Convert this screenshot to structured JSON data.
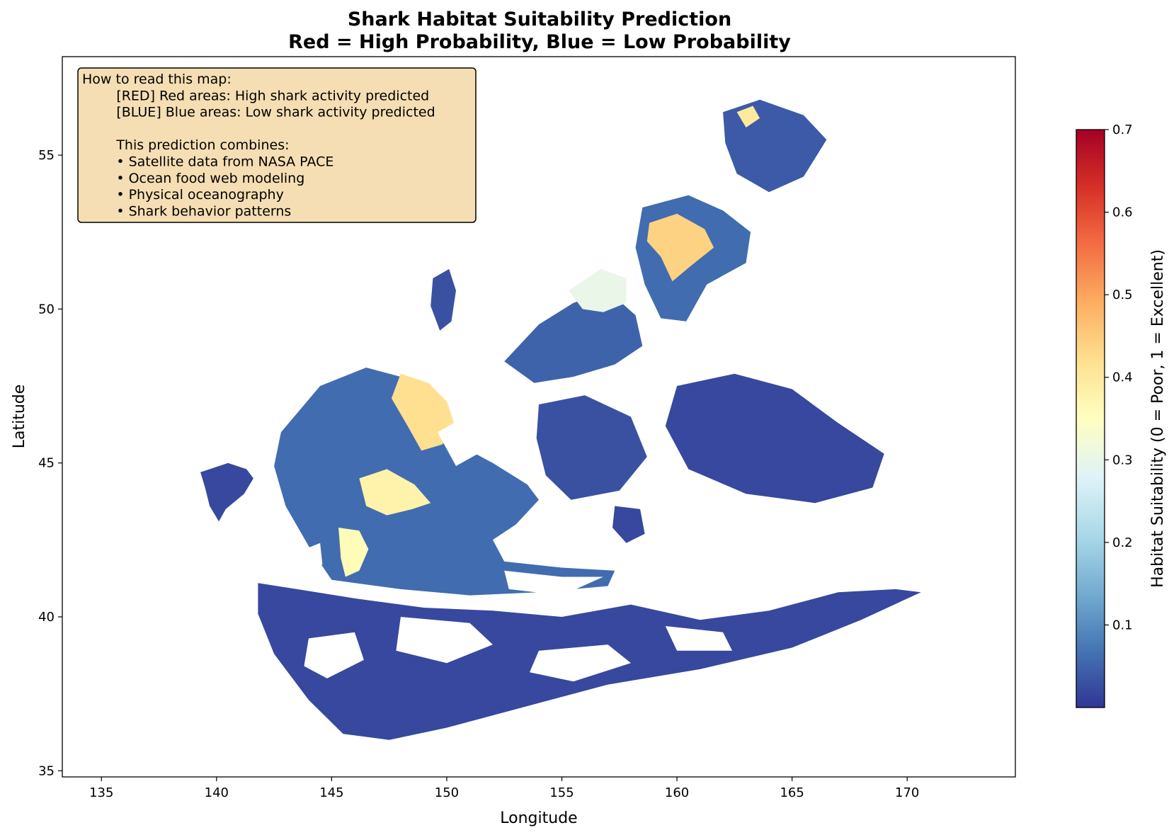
{
  "chart_data": {
    "type": "heatmap",
    "title_line1": "Shark Habitat Suitability Prediction",
    "title_line2": "Red = High Probability, Blue = Low Probability",
    "xlabel": "Longitude",
    "ylabel": "Latitude",
    "xlim": [
      133.3,
      174.7
    ],
    "ylim": [
      34.8,
      58.2
    ],
    "x_ticks": [
      135,
      140,
      145,
      150,
      155,
      160,
      165,
      170
    ],
    "y_ticks": [
      35,
      40,
      45,
      50,
      55
    ],
    "colormap": "RdYlBu_r",
    "colormap_stops": [
      "#313695",
      "#4575b4",
      "#74add1",
      "#abd9e9",
      "#e0f3f8",
      "#ffffbf",
      "#fee090",
      "#fdae61",
      "#f46d43",
      "#d73027",
      "#a50026"
    ],
    "colorbar": {
      "label": "Habitat Suitability (0 = Poor, 1 = Excellent)",
      "vmin": 0.0,
      "vmax": 0.7,
      "ticks": [
        0.1,
        0.2,
        0.3,
        0.4,
        0.5,
        0.6,
        0.7
      ]
    },
    "info_box": {
      "lines": [
        "How to read this map:",
        "        [RED] Red areas: High shark activity predicted",
        "        [BLUE] Blue areas: Low shark activity predicted",
        "",
        "        This prediction combines:",
        "        • Satellite data from NASA PACE",
        "        • Ocean food web modeling",
        "        • Physical oceanography",
        "        • Shark behavior patterns"
      ]
    },
    "regions": [
      {
        "name": "southern-shelf",
        "value": 0.02,
        "points": [
          [
            141.8,
            41.1
          ],
          [
            143.5,
            40.9
          ],
          [
            146.0,
            40.6
          ],
          [
            149.0,
            40.3
          ],
          [
            152.0,
            40.2
          ],
          [
            155.0,
            40.0
          ],
          [
            158.0,
            40.4
          ],
          [
            161.0,
            39.9
          ],
          [
            164.0,
            40.2
          ],
          [
            167.0,
            40.8
          ],
          [
            169.5,
            40.9
          ],
          [
            170.6,
            40.8
          ],
          [
            168.0,
            39.9
          ],
          [
            165.0,
            39.0
          ],
          [
            161.0,
            38.3
          ],
          [
            157.0,
            37.8
          ],
          [
            153.0,
            37.0
          ],
          [
            150.0,
            36.4
          ],
          [
            147.5,
            36.0
          ],
          [
            145.5,
            36.2
          ],
          [
            144.0,
            37.3
          ],
          [
            142.5,
            38.8
          ],
          [
            141.8,
            40.1
          ]
        ]
      },
      {
        "name": "western-block",
        "value": 0.02,
        "points": [
          [
            139.3,
            44.7
          ],
          [
            140.5,
            45.0
          ],
          [
            141.3,
            44.8
          ],
          [
            141.6,
            44.5
          ],
          [
            141.2,
            44.0
          ],
          [
            140.4,
            43.5
          ],
          [
            140.1,
            43.1
          ],
          [
            139.7,
            43.6
          ],
          [
            139.5,
            44.2
          ]
        ]
      },
      {
        "name": "sw-basin",
        "value": 0.06,
        "points": [
          [
            142.8,
            46.0
          ],
          [
            144.5,
            47.5
          ],
          [
            146.5,
            48.1
          ],
          [
            148.0,
            47.8
          ],
          [
            149.5,
            46.6
          ],
          [
            150.5,
            45.6
          ],
          [
            152.0,
            45.0
          ],
          [
            153.5,
            44.3
          ],
          [
            154.0,
            43.8
          ],
          [
            153.0,
            43.0
          ],
          [
            152.0,
            42.5
          ],
          [
            152.5,
            41.8
          ],
          [
            155.0,
            41.6
          ],
          [
            157.3,
            41.5
          ],
          [
            157.0,
            41.0
          ],
          [
            154.0,
            40.8
          ],
          [
            151.0,
            40.7
          ],
          [
            148.0,
            40.9
          ],
          [
            145.0,
            41.2
          ],
          [
            144.0,
            42.3
          ],
          [
            143.0,
            43.6
          ],
          [
            142.5,
            44.9
          ]
        ]
      },
      {
        "name": "sw-warm-front",
        "value": 0.42,
        "points": [
          [
            148.0,
            47.9
          ],
          [
            149.2,
            47.6
          ],
          [
            150.0,
            47.0
          ],
          [
            150.4,
            46.1
          ],
          [
            149.8,
            45.6
          ],
          [
            148.9,
            45.4
          ],
          [
            148.3,
            46.2
          ],
          [
            147.6,
            47.1
          ]
        ]
      },
      {
        "name": "sw-warm-eddy",
        "value": 0.38,
        "points": [
          [
            146.2,
            44.5
          ],
          [
            147.4,
            44.8
          ],
          [
            148.6,
            44.3
          ],
          [
            149.3,
            43.7
          ],
          [
            148.5,
            43.5
          ],
          [
            147.4,
            43.3
          ],
          [
            146.5,
            43.6
          ]
        ]
      },
      {
        "name": "sw-warm-filament",
        "value": 0.36,
        "points": [
          [
            145.3,
            42.9
          ],
          [
            146.2,
            42.8
          ],
          [
            146.6,
            42.2
          ],
          [
            146.2,
            41.5
          ],
          [
            145.6,
            41.3
          ],
          [
            145.4,
            41.9
          ]
        ]
      },
      {
        "name": "central-patch",
        "value": 0.05,
        "points": [
          [
            152.5,
            48.3
          ],
          [
            154.0,
            49.5
          ],
          [
            155.5,
            50.2
          ],
          [
            157.0,
            50.6
          ],
          [
            158.2,
            49.8
          ],
          [
            158.5,
            48.8
          ],
          [
            157.3,
            48.2
          ],
          [
            155.5,
            47.8
          ],
          [
            153.8,
            47.6
          ]
        ]
      },
      {
        "name": "central-warm",
        "value": 0.3,
        "points": [
          [
            155.3,
            50.6
          ],
          [
            156.7,
            51.3
          ],
          [
            157.8,
            51.0
          ],
          [
            157.8,
            50.2
          ],
          [
            156.8,
            49.9
          ],
          [
            155.9,
            50.0
          ]
        ]
      },
      {
        "name": "ne-shelf",
        "value": 0.06,
        "points": [
          [
            158.5,
            53.3
          ],
          [
            160.5,
            53.7
          ],
          [
            162.0,
            53.2
          ],
          [
            163.2,
            52.5
          ],
          [
            163.0,
            51.5
          ],
          [
            161.3,
            50.8
          ],
          [
            160.4,
            49.6
          ],
          [
            159.3,
            49.7
          ],
          [
            158.6,
            50.8
          ],
          [
            158.2,
            52.0
          ]
        ]
      },
      {
        "name": "ne-warm-patch",
        "value": 0.44,
        "points": [
          [
            158.8,
            52.8
          ],
          [
            160.0,
            53.1
          ],
          [
            161.2,
            52.6
          ],
          [
            161.6,
            52.0
          ],
          [
            160.6,
            51.4
          ],
          [
            159.8,
            50.9
          ],
          [
            159.3,
            51.7
          ],
          [
            158.7,
            52.2
          ]
        ]
      },
      {
        "name": "far-ne",
        "value": 0.04,
        "points": [
          [
            162.0,
            56.4
          ],
          [
            163.6,
            56.8
          ],
          [
            165.5,
            56.3
          ],
          [
            166.5,
            55.5
          ],
          [
            165.5,
            54.3
          ],
          [
            164.0,
            53.8
          ],
          [
            162.6,
            54.4
          ],
          [
            162.1,
            55.4
          ]
        ]
      },
      {
        "name": "far-ne-warm",
        "value": 0.4,
        "points": [
          [
            162.6,
            56.4
          ],
          [
            163.3,
            56.6
          ],
          [
            163.6,
            56.2
          ],
          [
            163.0,
            55.9
          ]
        ]
      },
      {
        "name": "north-tongue",
        "value": 0.03,
        "points": [
          [
            149.4,
            51.0
          ],
          [
            150.1,
            51.3
          ],
          [
            150.4,
            50.6
          ],
          [
            150.2,
            49.6
          ],
          [
            149.7,
            49.3
          ],
          [
            149.3,
            50.1
          ]
        ]
      },
      {
        "name": "east-patches",
        "value": 0.02,
        "points": [
          [
            160.0,
            47.5
          ],
          [
            162.5,
            47.9
          ],
          [
            165.0,
            47.4
          ],
          [
            167.0,
            46.3
          ],
          [
            169.0,
            45.3
          ],
          [
            168.5,
            44.2
          ],
          [
            166.0,
            43.7
          ],
          [
            163.0,
            44.0
          ],
          [
            160.5,
            44.8
          ],
          [
            159.5,
            46.2
          ]
        ]
      },
      {
        "name": "mid-scatter",
        "value": 0.03,
        "points": [
          [
            154.0,
            46.9
          ],
          [
            156.0,
            47.2
          ],
          [
            158.0,
            46.5
          ],
          [
            158.7,
            45.2
          ],
          [
            157.5,
            44.1
          ],
          [
            155.4,
            43.8
          ],
          [
            154.3,
            44.6
          ],
          [
            153.9,
            45.8
          ]
        ]
      },
      {
        "name": "south-mid-block",
        "value": 0.02,
        "points": [
          [
            157.3,
            43.6
          ],
          [
            158.4,
            43.5
          ],
          [
            158.6,
            42.7
          ],
          [
            157.8,
            42.4
          ],
          [
            157.2,
            42.9
          ]
        ]
      }
    ],
    "gaps": [
      {
        "name": "gap-1",
        "points": [
          [
            148.0,
            40.0
          ],
          [
            151.0,
            39.8
          ],
          [
            152.0,
            39.1
          ],
          [
            150.0,
            38.5
          ],
          [
            147.8,
            38.9
          ]
        ]
      },
      {
        "name": "gap-2",
        "points": [
          [
            144.0,
            39.3
          ],
          [
            146.0,
            39.5
          ],
          [
            146.4,
            38.6
          ],
          [
            144.8,
            38.0
          ],
          [
            143.8,
            38.4
          ]
        ]
      },
      {
        "name": "gap-3",
        "points": [
          [
            154.0,
            38.9
          ],
          [
            157.0,
            39.1
          ],
          [
            158.0,
            38.5
          ],
          [
            155.5,
            37.9
          ],
          [
            153.6,
            38.2
          ]
        ]
      },
      {
        "name": "gap-4",
        "points": [
          [
            152.5,
            41.5
          ],
          [
            155.0,
            41.3
          ],
          [
            156.8,
            41.3
          ],
          [
            155.0,
            40.7
          ],
          [
            152.7,
            40.9
          ]
        ]
      },
      {
        "name": "gap-5",
        "points": [
          [
            159.5,
            39.7
          ],
          [
            162.0,
            39.5
          ],
          [
            162.4,
            38.9
          ],
          [
            160.0,
            38.9
          ]
        ]
      },
      {
        "name": "gap-6",
        "points": [
          [
            149.6,
            46.0
          ],
          [
            151.0,
            46.6
          ],
          [
            151.6,
            45.4
          ],
          [
            150.4,
            44.9
          ]
        ]
      },
      {
        "name": "gap-7",
        "points": [
          [
            143.5,
            42.1
          ],
          [
            144.5,
            42.4
          ],
          [
            144.6,
            41.7
          ],
          [
            143.8,
            41.6
          ]
        ]
      }
    ]
  }
}
